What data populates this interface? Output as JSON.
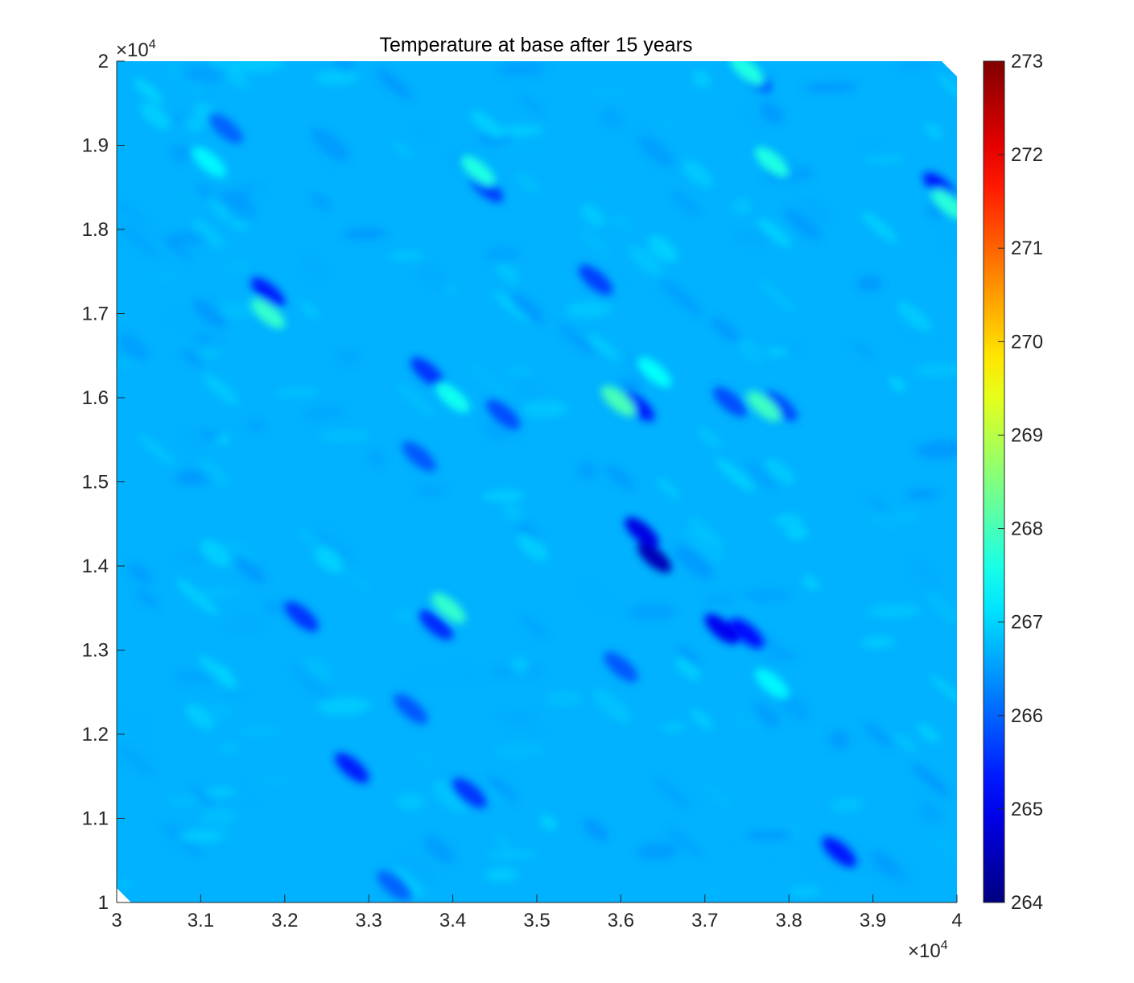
{
  "chart_data": {
    "type": "heatmap",
    "title": "Temperature at base after 15 years",
    "xlabel": "",
    "ylabel": "",
    "xlim": [
      30000,
      40000
    ],
    "ylim": [
      10000,
      20000
    ],
    "x_ticks": [
      "3",
      "3.1",
      "3.2",
      "3.3",
      "3.4",
      "3.5",
      "3.6",
      "3.7",
      "3.8",
      "3.9",
      "4"
    ],
    "y_ticks": [
      "1",
      "1.1",
      "1.2",
      "1.3",
      "1.4",
      "1.5",
      "1.6",
      "1.7",
      "1.8",
      "1.9",
      "2"
    ],
    "x_exponent": {
      "base": "×10",
      "power": "4"
    },
    "y_exponent": {
      "base": "×10",
      "power": "4"
    },
    "colorbar": {
      "range": [
        264,
        273
      ],
      "ticks": [
        "264",
        "265",
        "266",
        "267",
        "268",
        "269",
        "270",
        "271",
        "272",
        "273"
      ],
      "colormap": "jet"
    },
    "field": {
      "background_value": 266.7,
      "features": [
        {
          "x": 36400,
          "y": 14100,
          "value": 264.5
        },
        {
          "x": 36250,
          "y": 14400,
          "value": 264.9
        },
        {
          "x": 37200,
          "y": 13250,
          "value": 265.0
        },
        {
          "x": 37500,
          "y": 13200,
          "value": 265.2
        },
        {
          "x": 38600,
          "y": 10600,
          "value": 265.3
        },
        {
          "x": 39800,
          "y": 18500,
          "value": 265.3
        },
        {
          "x": 31800,
          "y": 17250,
          "value": 265.4
        },
        {
          "x": 33700,
          "y": 16300,
          "value": 265.6
        },
        {
          "x": 36200,
          "y": 15900,
          "value": 265.4
        },
        {
          "x": 33800,
          "y": 13300,
          "value": 265.5
        },
        {
          "x": 32200,
          "y": 13400,
          "value": 265.6
        },
        {
          "x": 32800,
          "y": 11600,
          "value": 265.4
        },
        {
          "x": 34200,
          "y": 11300,
          "value": 265.6
        },
        {
          "x": 34400,
          "y": 18500,
          "value": 265.7
        },
        {
          "x": 35700,
          "y": 17400,
          "value": 265.7
        },
        {
          "x": 37900,
          "y": 15900,
          "value": 265.8
        },
        {
          "x": 37300,
          "y": 15950,
          "value": 265.8
        },
        {
          "x": 34600,
          "y": 15800,
          "value": 265.8
        },
        {
          "x": 33600,
          "y": 15300,
          "value": 265.9
        },
        {
          "x": 36000,
          "y": 12800,
          "value": 265.9
        },
        {
          "x": 33500,
          "y": 12300,
          "value": 265.9
        },
        {
          "x": 31300,
          "y": 19200,
          "value": 266.0
        },
        {
          "x": 37600,
          "y": 19800,
          "value": 266.0
        },
        {
          "x": 33300,
          "y": 10200,
          "value": 266.0
        },
        {
          "x": 34000,
          "y": 16000,
          "value": 267.5
        },
        {
          "x": 35970,
          "y": 15960,
          "value": 268.0
        },
        {
          "x": 37700,
          "y": 15900,
          "value": 267.9
        },
        {
          "x": 31800,
          "y": 17000,
          "value": 267.8
        },
        {
          "x": 33950,
          "y": 13500,
          "value": 267.8
        },
        {
          "x": 34300,
          "y": 18700,
          "value": 267.6
        },
        {
          "x": 37800,
          "y": 18800,
          "value": 267.6
        },
        {
          "x": 39900,
          "y": 18300,
          "value": 267.7
        },
        {
          "x": 37500,
          "y": 19900,
          "value": 267.6
        },
        {
          "x": 36400,
          "y": 16300,
          "value": 267.4
        },
        {
          "x": 31100,
          "y": 18800,
          "value": 267.3
        },
        {
          "x": 37800,
          "y": 12600,
          "value": 267.3
        }
      ]
    }
  }
}
